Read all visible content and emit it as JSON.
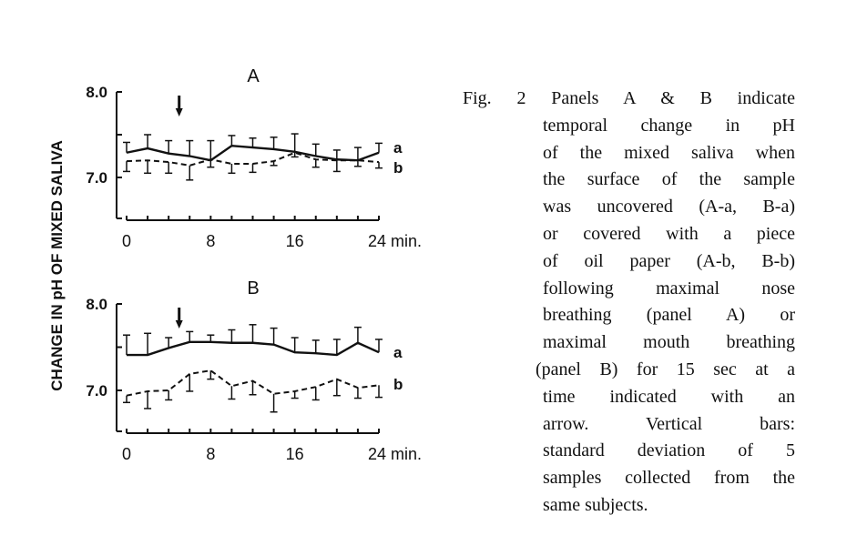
{
  "chart_data": [
    {
      "type": "line",
      "title": "A",
      "xlabel": "min.",
      "ylabel": "CHANGE IN pH OF MIXED SALIVA",
      "xlim": [
        0,
        24
      ],
      "ylim": [
        6.5,
        8.0
      ],
      "x_tick_labels": [
        "0",
        "8",
        "16",
        "24 min."
      ],
      "x_tick_values": [
        0,
        8,
        16,
        24
      ],
      "y_tick_labels": [
        "8.0",
        "7.0"
      ],
      "y_tick_values": [
        8.0,
        7.0
      ],
      "arrow_at": 5,
      "x": [
        0,
        2,
        4,
        6,
        8,
        10,
        12,
        14,
        16,
        18,
        20,
        22,
        24
      ],
      "series": [
        {
          "name": "a",
          "style": "solid",
          "error_dir": "up",
          "values": [
            7.29,
            7.34,
            7.28,
            7.25,
            7.2,
            7.37,
            7.35,
            7.33,
            7.3,
            7.25,
            7.21,
            7.2,
            7.29
          ],
          "sd": [
            0.12,
            0.16,
            0.15,
            0.18,
            0.23,
            0.12,
            0.11,
            0.14,
            0.21,
            0.14,
            0.11,
            0.15,
            0.11
          ]
        },
        {
          "name": "b",
          "style": "dashed",
          "error_dir": "down",
          "values": [
            7.19,
            7.2,
            7.18,
            7.14,
            7.21,
            7.16,
            7.16,
            7.19,
            7.29,
            7.21,
            7.2,
            7.2,
            7.18
          ],
          "sd": [
            0.12,
            0.15,
            0.13,
            0.17,
            0.09,
            0.11,
            0.1,
            0.05,
            0.05,
            0.09,
            0.13,
            0.07,
            0.07
          ]
        }
      ]
    },
    {
      "type": "line",
      "title": "B",
      "xlabel": "min.",
      "ylabel": "CHANGE IN pH OF MIXED SALIVA",
      "xlim": [
        0,
        24
      ],
      "ylim": [
        6.5,
        8.0
      ],
      "x_tick_labels": [
        "0",
        "8",
        "16",
        "24 min."
      ],
      "x_tick_values": [
        0,
        8,
        16,
        24
      ],
      "y_tick_labels": [
        "8.0",
        "7.0"
      ],
      "y_tick_values": [
        8.0,
        7.0
      ],
      "arrow_at": 5,
      "x": [
        0,
        2,
        4,
        6,
        8,
        10,
        12,
        14,
        16,
        18,
        20,
        22,
        24
      ],
      "series": [
        {
          "name": "a",
          "style": "solid",
          "error_dir": "up",
          "values": [
            7.41,
            7.41,
            7.49,
            7.56,
            7.56,
            7.55,
            7.55,
            7.53,
            7.44,
            7.43,
            7.41,
            7.55,
            7.44
          ],
          "sd": [
            0.23,
            0.25,
            0.12,
            0.12,
            0.08,
            0.15,
            0.21,
            0.19,
            0.17,
            0.15,
            0.18,
            0.18,
            0.15
          ]
        },
        {
          "name": "b",
          "style": "dashed",
          "error_dir": "down",
          "values": [
            6.94,
            6.99,
            7.0,
            7.19,
            7.23,
            7.05,
            7.11,
            6.96,
            6.99,
            7.04,
            7.13,
            7.03,
            7.06
          ],
          "sd": [
            0.08,
            0.2,
            0.11,
            0.2,
            0.1,
            0.15,
            0.16,
            0.21,
            0.08,
            0.15,
            0.19,
            0.12,
            0.14
          ]
        }
      ]
    }
  ],
  "caption": {
    "lines": [
      "Fig. 2  Panels  A  &  B  indicate",
      "temporal  change  in  pH",
      "of the  mixed saliva when",
      "the surface of  the sample",
      "was uncovered (A-a, B-a)",
      "or covered  with  a  piece",
      "of  oil paper (A-b,  B-b)",
      "following  maximal  nose",
      "breathing  (panel  A)  or",
      "maximal mouth  breathing",
      "(panel B)  for 15 sec  at  a",
      "time  indicated  with  an",
      "arrow.  Vertical  bars:",
      "standard  deviation  of  5",
      "samples collected from the",
      "same subjects."
    ]
  }
}
